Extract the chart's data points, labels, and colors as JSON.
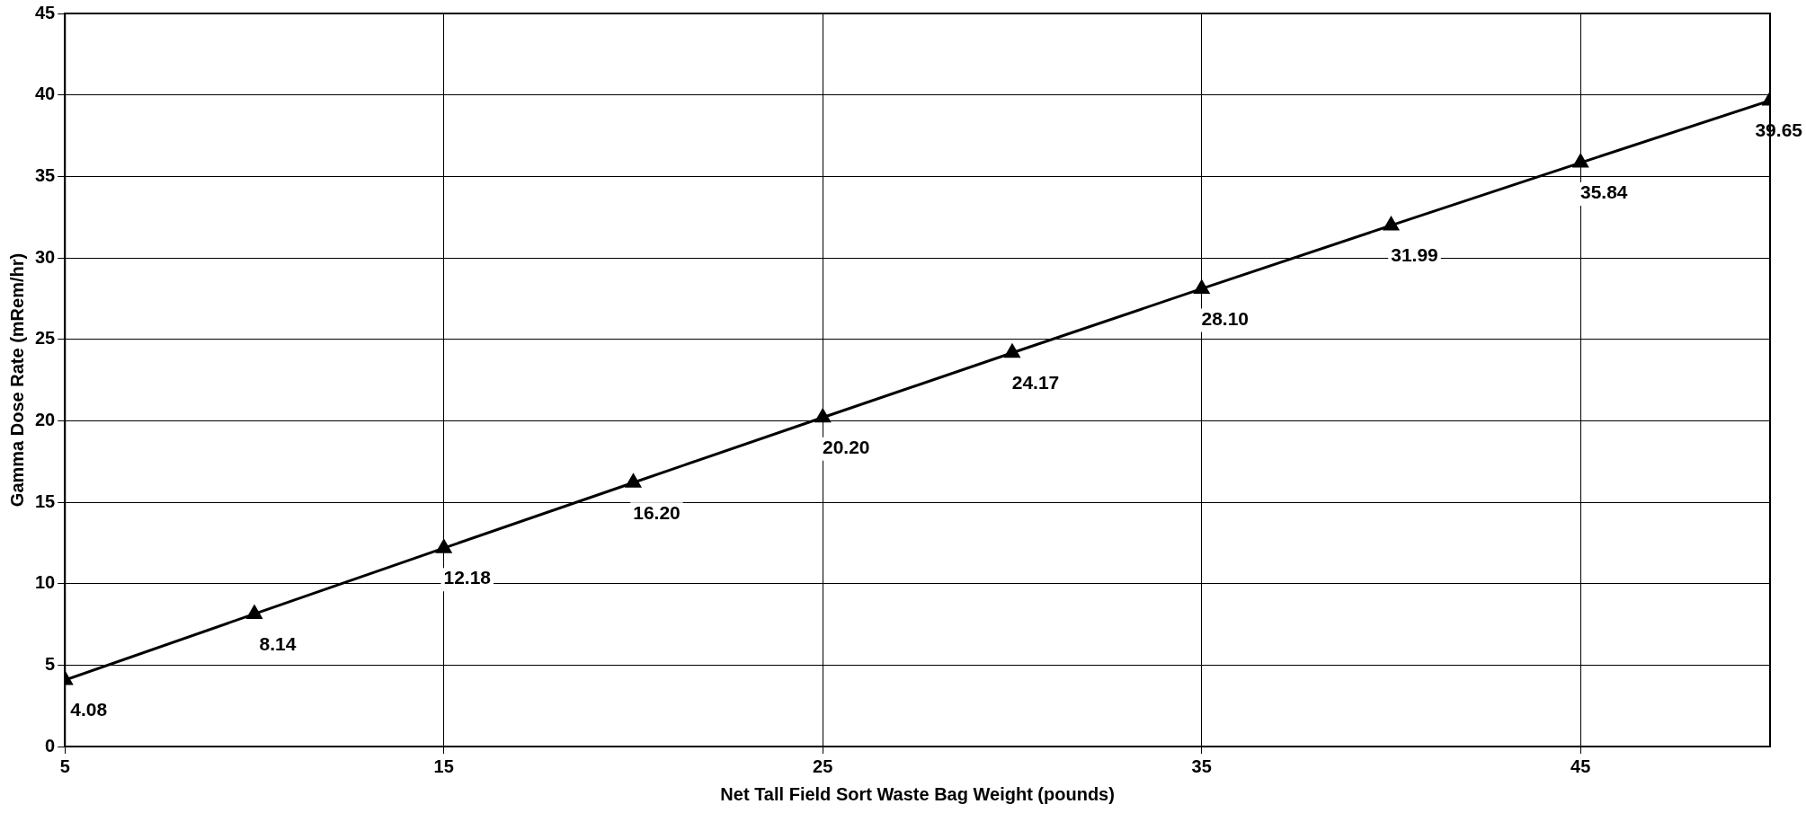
{
  "chart_data": {
    "type": "line",
    "xlabel": "Net Tall Field Sort Waste Bag Weight (pounds)",
    "ylabel": "Gamma Dose Rate (mRem/hr)",
    "x": [
      5,
      10,
      15,
      20,
      25,
      30,
      35,
      40,
      45,
      50
    ],
    "series": [
      {
        "color": "#000000",
        "values": [
          4.08,
          8.14,
          12.18,
          16.2,
          20.2,
          24.17,
          28.1,
          31.99,
          35.84,
          39.65
        ],
        "value_labels": [
          "4.08",
          "8.14",
          "12.18",
          "16.20",
          "20.20",
          "24.17",
          "28.10",
          "31.99",
          "35.84",
          "39.65"
        ]
      }
    ],
    "xlim": [
      5,
      50
    ],
    "xticks": [
      5,
      15,
      25,
      35,
      45
    ],
    "ylim": [
      0,
      45
    ],
    "yticks": [
      0,
      5,
      10,
      15,
      20,
      25,
      30,
      35,
      40,
      45
    ],
    "grid": true,
    "legend": false,
    "marker": "triangle",
    "line_style": "solid"
  }
}
